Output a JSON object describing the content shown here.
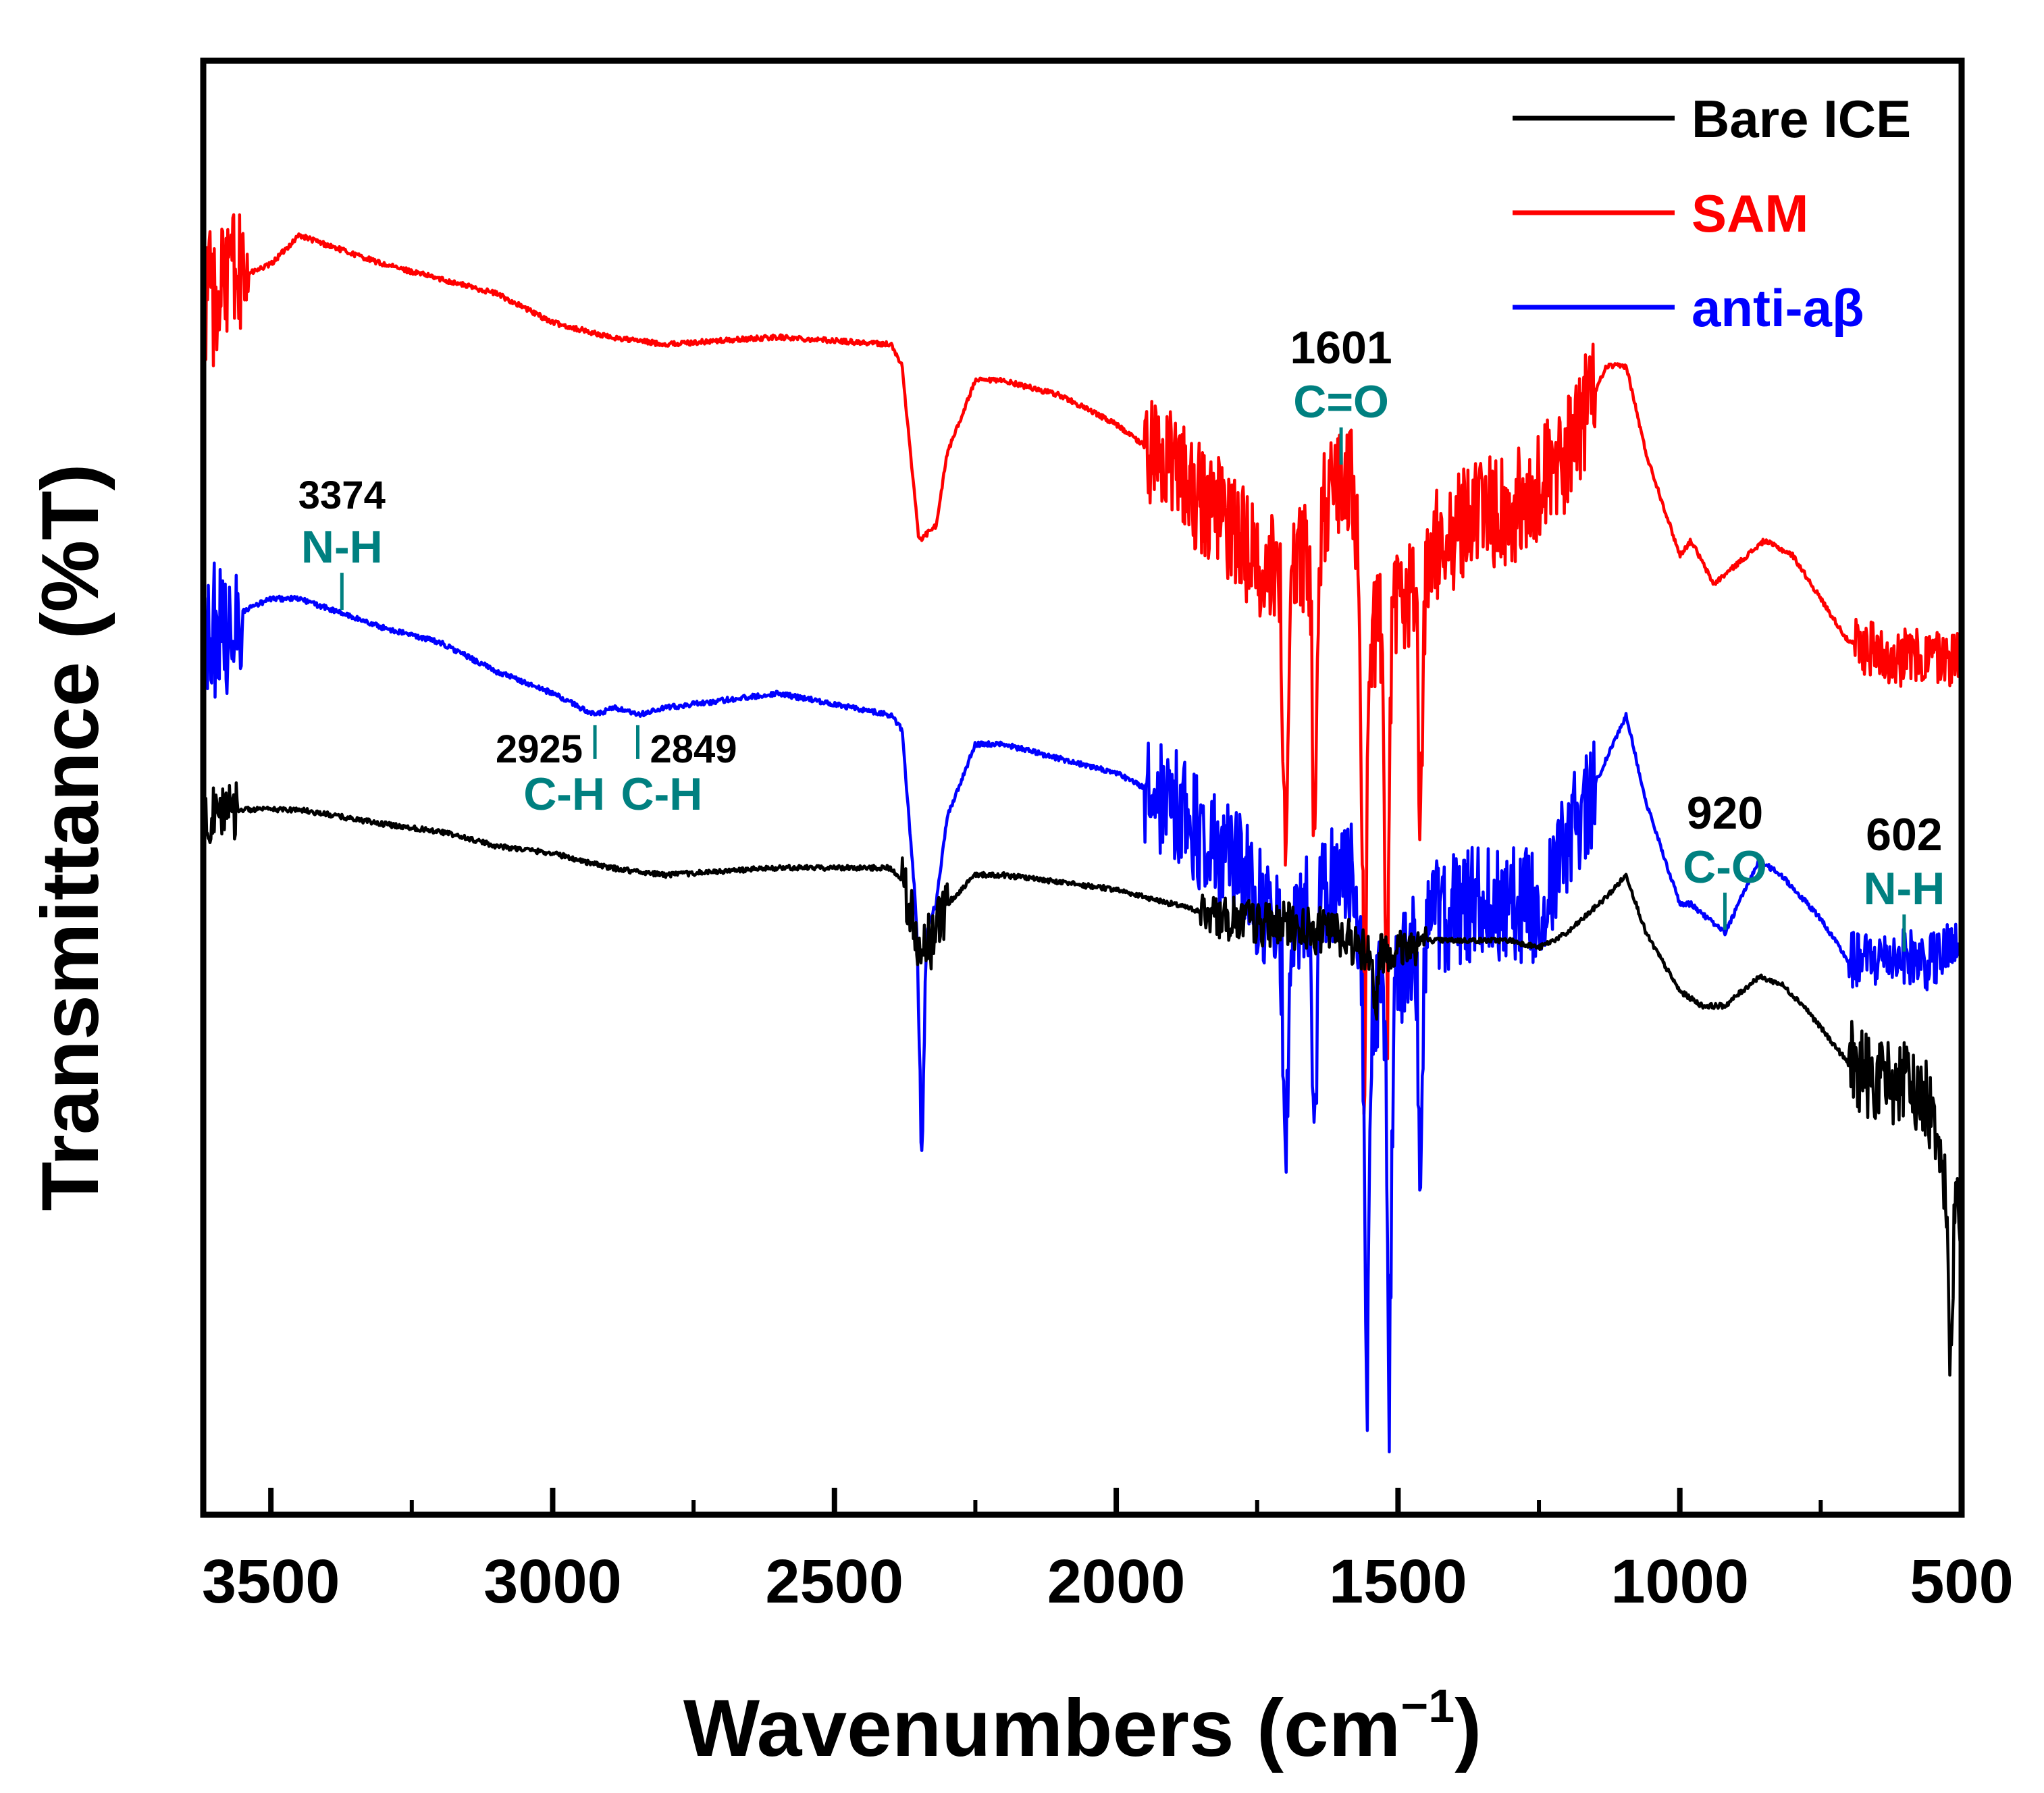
{
  "chart_data": {
    "type": "line",
    "title": "",
    "xlabel": "Wavenumbers (cm",
    "xlabel_sup": "−1",
    "xlabel_close": ")",
    "ylabel": "Transmittance (%T)",
    "xlim": [
      3620,
      500
    ],
    "ylim": [
      0,
      100
    ],
    "x_ticks": [
      3500,
      3000,
      2500,
      2000,
      1500,
      1000,
      500
    ],
    "x_tick_labels": [
      "3500",
      "3000",
      "2500",
      "2000",
      "1500",
      "1000",
      "500"
    ],
    "y_ticks_shown": false,
    "legend_position": "top-right",
    "legend": [
      {
        "label": "Bare ICE",
        "color": "#000000"
      },
      {
        "label": "SAM",
        "color": "#ff0000"
      },
      {
        "label": "anti-aβ",
        "color": "#0000ff"
      }
    ],
    "series": [
      {
        "name": "SAM",
        "color": "#ff0000",
        "noise": [
          {
            "from": 3620,
            "to": 3540,
            "amp": 5
          },
          {
            "from": 1950,
            "to": 1150,
            "amp": 4
          },
          {
            "from": 690,
            "to": 500,
            "amp": 2
          }
        ],
        "absorption_dips": [
          {
            "x": 1700,
            "depth": 24
          },
          {
            "x": 1648,
            "depth": 25
          },
          {
            "x": 1560,
            "depth": 32
          },
          {
            "x": 1520,
            "depth": 30
          },
          {
            "x": 1460,
            "depth": 20
          }
        ],
        "points": [
          [
            3620,
            83
          ],
          [
            3560,
            85
          ],
          [
            3500,
            86
          ],
          [
            3450,
            88
          ],
          [
            3300,
            86
          ],
          [
            3200,
            85
          ],
          [
            3100,
            84
          ],
          [
            3000,
            82
          ],
          [
            2900,
            81
          ],
          [
            2800,
            80.5
          ],
          [
            2600,
            81
          ],
          [
            2400,
            80.5
          ],
          [
            2380,
            79
          ],
          [
            2350,
            67
          ],
          [
            2320,
            68
          ],
          [
            2300,
            73
          ],
          [
            2250,
            78
          ],
          [
            2200,
            78
          ],
          [
            2100,
            77
          ],
          [
            2000,
            75
          ],
          [
            1900,
            72
          ],
          [
            1800,
            68
          ],
          [
            1700,
            64
          ],
          [
            1650,
            67
          ],
          [
            1601,
            72
          ],
          [
            1580,
            71
          ],
          [
            1560,
            60
          ],
          [
            1500,
            62
          ],
          [
            1450,
            66
          ],
          [
            1350,
            69
          ],
          [
            1300,
            69
          ],
          [
            1200,
            73
          ],
          [
            1130,
            79
          ],
          [
            1095,
            79
          ],
          [
            1060,
            73
          ],
          [
            1000,
            66
          ],
          [
            980,
            67
          ],
          [
            940,
            64
          ],
          [
            850,
            67
          ],
          [
            800,
            66
          ],
          [
            750,
            63
          ],
          [
            700,
            60
          ],
          [
            600,
            59
          ],
          [
            500,
            59
          ]
        ]
      },
      {
        "name": "anti-aβ",
        "color": "#0000ff",
        "noise": [
          {
            "from": 3620,
            "to": 3550,
            "amp": 5
          },
          {
            "from": 1950,
            "to": 1150,
            "amp": 4
          },
          {
            "from": 700,
            "to": 500,
            "amp": 2
          }
        ],
        "absorption_dips": [
          {
            "x": 2345,
            "depth": 16
          },
          {
            "x": 1700,
            "depth": 19
          },
          {
            "x": 1648,
            "depth": 22
          },
          {
            "x": 1555,
            "depth": 32
          },
          {
            "x": 1515,
            "depth": 29
          },
          {
            "x": 1460,
            "depth": 20
          }
        ],
        "points": [
          [
            3620,
            60
          ],
          [
            3560,
            62
          ],
          [
            3500,
            63
          ],
          [
            3450,
            63
          ],
          [
            3374,
            62
          ],
          [
            3300,
            61
          ],
          [
            3200,
            60
          ],
          [
            3100,
            58
          ],
          [
            3000,
            56.5
          ],
          [
            2925,
            55
          ],
          [
            2890,
            55.5
          ],
          [
            2849,
            55
          ],
          [
            2800,
            55.5
          ],
          [
            2600,
            56.5
          ],
          [
            2400,
            55
          ],
          [
            2380,
            54
          ],
          [
            2350,
            39
          ],
          [
            2320,
            42
          ],
          [
            2300,
            48
          ],
          [
            2250,
            53
          ],
          [
            2200,
            53
          ],
          [
            2100,
            52
          ],
          [
            2000,
            51
          ],
          [
            1900,
            49
          ],
          [
            1800,
            45
          ],
          [
            1700,
            40
          ],
          [
            1650,
            42
          ],
          [
            1601,
            44
          ],
          [
            1580,
            44
          ],
          [
            1555,
            35
          ],
          [
            1500,
            37
          ],
          [
            1450,
            41
          ],
          [
            1350,
            42
          ],
          [
            1300,
            42
          ],
          [
            1250,
            42
          ],
          [
            1200,
            46
          ],
          [
            1130,
            52
          ],
          [
            1095,
            55
          ],
          [
            1060,
            49
          ],
          [
            1000,
            42
          ],
          [
            980,
            42
          ],
          [
            920,
            40
          ],
          [
            860,
            45
          ],
          [
            820,
            44
          ],
          [
            750,
            41
          ],
          [
            700,
            38
          ],
          [
            602,
            38.5
          ],
          [
            560,
            38
          ],
          [
            500,
            39
          ]
        ]
      },
      {
        "name": "Bare ICE",
        "color": "#000000",
        "noise": [
          {
            "from": 3620,
            "to": 3560,
            "amp": 2
          },
          {
            "from": 2380,
            "to": 2300,
            "amp": 2
          },
          {
            "from": 1850,
            "to": 1450,
            "amp": 1.5
          },
          {
            "from": 700,
            "to": 500,
            "amp": 3
          }
        ],
        "absorption_dips": [
          {
            "x": 1540,
            "depth": 4
          },
          {
            "x": 520,
            "depth": 12
          }
        ],
        "points": [
          [
            3620,
            48
          ],
          [
            3560,
            48.5
          ],
          [
            3500,
            48.5
          ],
          [
            3450,
            48.5
          ],
          [
            3300,
            47.5
          ],
          [
            3200,
            47
          ],
          [
            3100,
            46
          ],
          [
            3000,
            45.5
          ],
          [
            2900,
            44.5
          ],
          [
            2800,
            44
          ],
          [
            2600,
            44.5
          ],
          [
            2400,
            44.5
          ],
          [
            2380,
            43.5
          ],
          [
            2350,
            39
          ],
          [
            2320,
            40
          ],
          [
            2300,
            42
          ],
          [
            2250,
            44
          ],
          [
            2200,
            44
          ],
          [
            2100,
            43.5
          ],
          [
            2000,
            43
          ],
          [
            1900,
            42
          ],
          [
            1800,
            41
          ],
          [
            1700,
            40.5
          ],
          [
            1600,
            40
          ],
          [
            1550,
            38.5
          ],
          [
            1500,
            39
          ],
          [
            1450,
            39.5
          ],
          [
            1350,
            39.5
          ],
          [
            1300,
            39.5
          ],
          [
            1250,
            39
          ],
          [
            1200,
            40
          ],
          [
            1130,
            42.5
          ],
          [
            1095,
            44
          ],
          [
            1060,
            40
          ],
          [
            1000,
            36
          ],
          [
            960,
            35
          ],
          [
            920,
            35
          ],
          [
            860,
            37
          ],
          [
            820,
            36.5
          ],
          [
            780,
            35
          ],
          [
            740,
            33
          ],
          [
            700,
            31
          ],
          [
            650,
            30
          ],
          [
            600,
            29.5
          ],
          [
            550,
            28
          ],
          [
            520,
            22
          ],
          [
            500,
            20
          ]
        ]
      }
    ],
    "annotations": [
      {
        "number": "3374",
        "bond": "N-H",
        "x": 3374,
        "series": "anti-aβ",
        "num_style": "small",
        "label_side": "above"
      },
      {
        "number": "2925",
        "bond": "C-H",
        "x": 2925,
        "series": "anti-aβ",
        "num_style": "small",
        "label_side": "below-left"
      },
      {
        "number": "2849",
        "bond": "C-H",
        "x": 2849,
        "series": "anti-aβ",
        "num_style": "small",
        "label_side": "below-right"
      },
      {
        "number": "1601",
        "bond": "C=O",
        "x": 1601,
        "series": "SAM",
        "num_style": "large",
        "label_side": "above"
      },
      {
        "number": "920",
        "bond": "C-O",
        "x": 920,
        "series": "anti-aβ",
        "num_style": "large",
        "label_side": "above"
      },
      {
        "number": "602",
        "bond": "N-H",
        "x": 602,
        "series": "anti-aβ",
        "num_style": "large",
        "label_side": "above"
      }
    ],
    "annotation_color": "#008080"
  }
}
